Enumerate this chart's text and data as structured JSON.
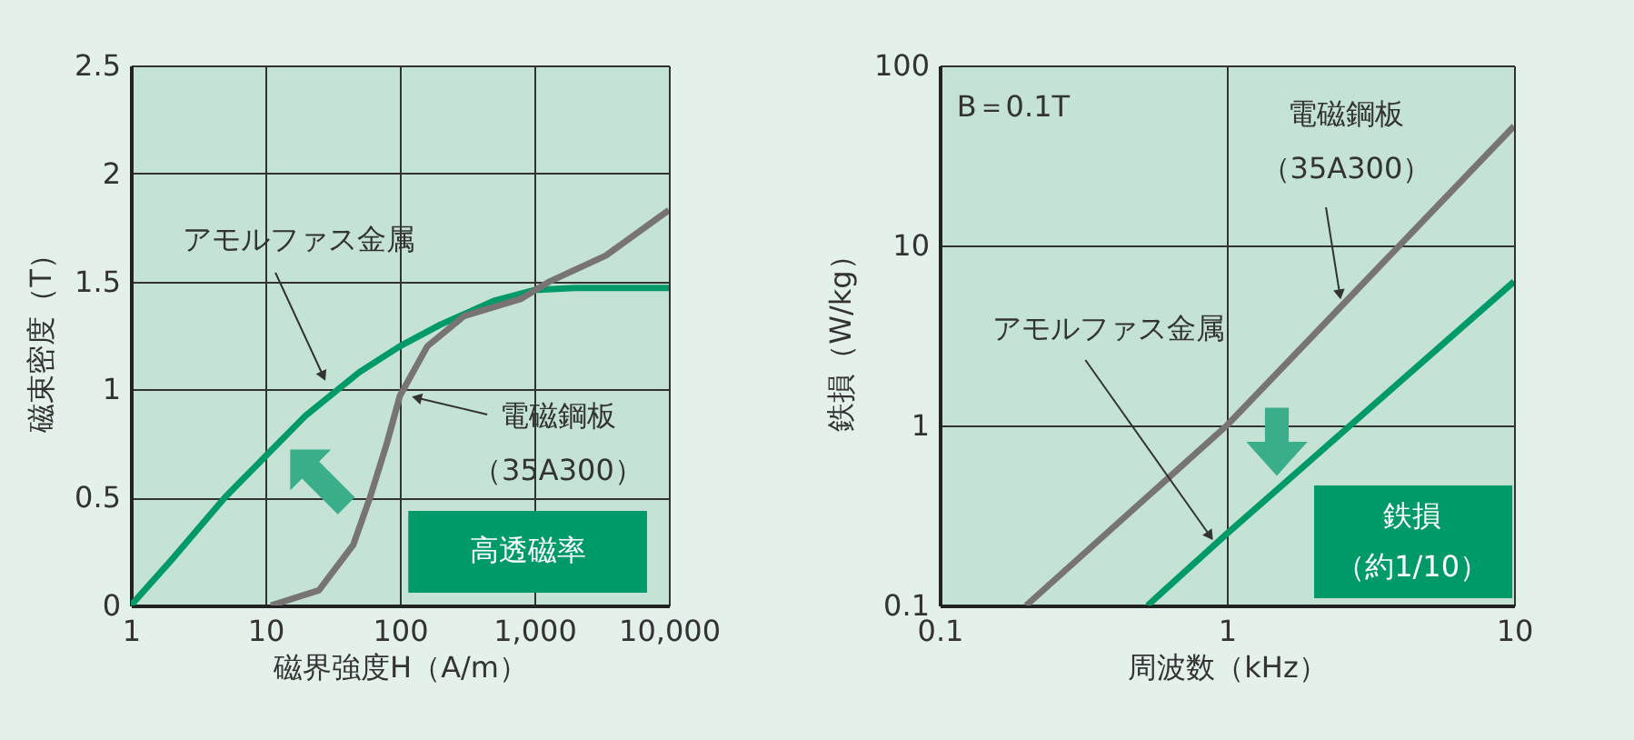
{
  "chart_data": [
    {
      "type": "line",
      "xlabel": "磁界強度H（A/m）",
      "ylabel": "磁束密度（T）",
      "log": "x",
      "grid": true,
      "xlim": [
        1,
        10000
      ],
      "xticks": [
        1,
        10,
        100,
        {
          "value": 1000,
          "label": "1,000"
        },
        {
          "value": 10000,
          "label": "10,000"
        }
      ],
      "ylim": [
        0,
        2.5
      ],
      "yticks": [
        0,
        0.5,
        1,
        1.5,
        2,
        2.5
      ],
      "series": [
        {
          "name": "アモルファス金属",
          "color": "#009a6a",
          "x": [
            1,
            2,
            5,
            10,
            20,
            50,
            100,
            200,
            500,
            1000,
            2000,
            10000
          ],
          "values": [
            0,
            0.21,
            0.5,
            0.69,
            0.88,
            1.08,
            1.2,
            1.3,
            1.41,
            1.46,
            1.47,
            1.47
          ]
        },
        {
          "name": "電磁鋼板",
          "color": "#787474",
          "x": [
            11,
            25,
            45,
            60,
            80,
            100,
            160,
            300,
            800,
            1300,
            3400,
            10000
          ],
          "values": [
            0,
            0.07,
            0.28,
            0.5,
            0.75,
            0.97,
            1.2,
            1.34,
            1.42,
            1.5,
            1.62,
            1.83
          ]
        }
      ],
      "annotations": [
        "高透磁率",
        "（35A300）"
      ]
    },
    {
      "type": "line",
      "xlabel": "周波数（kHz）",
      "ylabel": "鉄損（W/kg）",
      "log": "xy",
      "grid": true,
      "xlim": [
        0.1,
        10
      ],
      "xticks": [
        0.1,
        1,
        10
      ],
      "ylim": [
        0.1,
        100
      ],
      "yticks": [
        0.1,
        1,
        10,
        100
      ],
      "series": [
        {
          "name": "電磁鋼板",
          "color": "#787474",
          "x": [
            0.2,
            1,
            10
          ],
          "values": [
            0.1,
            1,
            46
          ]
        },
        {
          "name": "アモルファス金属",
          "color": "#009a6a",
          "x": [
            0.53,
            1,
            10
          ],
          "values": [
            0.1,
            0.25,
            6.3
          ]
        }
      ],
      "annotations": [
        "B＝0.1T",
        "（35A300）",
        "鉄損",
        "（約1/10）"
      ]
    }
  ]
}
